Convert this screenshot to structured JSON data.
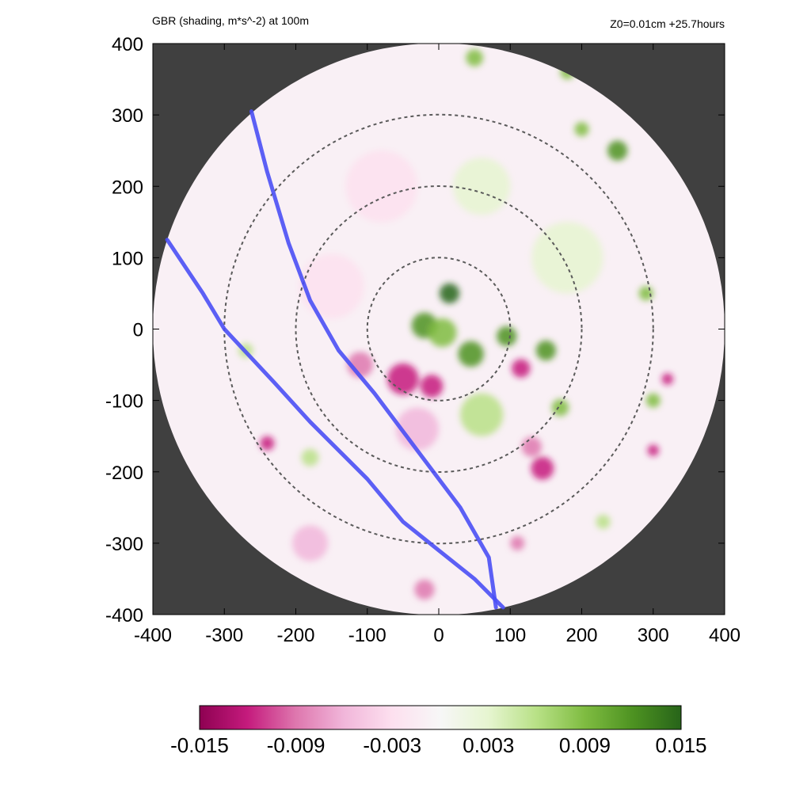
{
  "header": {
    "title": "GBR (shading, m*s^-2) at 100m",
    "run_info": "Z0=0.01cm  +25.7hours"
  },
  "chart_data": {
    "type": "heatmap",
    "title": "GBR (shading, m*s^-2) at 100m",
    "xlabel": "",
    "ylabel": "",
    "xlim": [
      -400,
      400
    ],
    "ylim": [
      -400,
      400
    ],
    "x_ticks": [
      -400,
      -300,
      -200,
      -100,
      0,
      100,
      200,
      300,
      400
    ],
    "y_ticks": [
      -400,
      -300,
      -200,
      -100,
      0,
      100,
      200,
      300,
      400
    ],
    "domain_radius": 400,
    "range_rings": [
      100,
      200,
      300
    ],
    "background_outside_domain": "#404040",
    "colorbar": {
      "range": [
        -0.015,
        0.015
      ],
      "tick_labels": [
        "-0.015",
        "-0.009",
        "-0.003",
        "0.003",
        "0.009",
        "0.015"
      ],
      "colors": [
        "#8e0152",
        "#c51b7d",
        "#de77ae",
        "#f1b6da",
        "#fde0ef",
        "#f7f7f7",
        "#e6f5d0",
        "#b8e186",
        "#7fbc41",
        "#4d9221",
        "#276419"
      ]
    },
    "tracks": [
      {
        "color": "#4a4ff5",
        "points": [
          [
            -380,
            125
          ],
          [
            -330,
            50
          ],
          [
            -300,
            0
          ],
          [
            -230,
            -75
          ],
          [
            -180,
            -130
          ],
          [
            -100,
            -210
          ],
          [
            -50,
            -270
          ],
          [
            0,
            -310
          ],
          [
            50,
            -350
          ],
          [
            90,
            -390
          ]
        ]
      },
      {
        "color": "#4a4ff5",
        "points": [
          [
            -262,
            305
          ],
          [
            -240,
            220
          ],
          [
            -210,
            120
          ],
          [
            -180,
            40
          ],
          [
            -140,
            -30
          ],
          [
            -90,
            -90
          ],
          [
            -30,
            -170
          ],
          [
            30,
            -250
          ],
          [
            70,
            -320
          ],
          [
            80,
            -390
          ]
        ]
      }
    ],
    "features": [
      {
        "x": 15,
        "y": 50,
        "r": 14,
        "value": 0.014
      },
      {
        "x": -20,
        "y": 5,
        "r": 18,
        "value": 0.012
      },
      {
        "x": 5,
        "y": -5,
        "r": 20,
        "value": 0.008
      },
      {
        "x": 45,
        "y": -35,
        "r": 18,
        "value": 0.011
      },
      {
        "x": 95,
        "y": -10,
        "r": 14,
        "value": 0.013
      },
      {
        "x": 115,
        "y": -55,
        "r": 13,
        "value": -0.012
      },
      {
        "x": 150,
        "y": -30,
        "r": 14,
        "value": 0.011
      },
      {
        "x": 145,
        "y": -195,
        "r": 16,
        "value": -0.013
      },
      {
        "x": 130,
        "y": -165,
        "r": 14,
        "value": -0.01
      },
      {
        "x": 170,
        "y": -110,
        "r": 12,
        "value": 0.01
      },
      {
        "x": 320,
        "y": -70,
        "r": 8,
        "value": -0.012
      },
      {
        "x": 300,
        "y": -170,
        "r": 8,
        "value": -0.013
      },
      {
        "x": 300,
        "y": -100,
        "r": 10,
        "value": 0.01
      },
      {
        "x": 250,
        "y": 250,
        "r": 14,
        "value": 0.011
      },
      {
        "x": 200,
        "y": 280,
        "r": 10,
        "value": 0.008
      },
      {
        "x": 290,
        "y": 50,
        "r": 10,
        "value": 0.009
      },
      {
        "x": -50,
        "y": -70,
        "r": 22,
        "value": -0.011
      },
      {
        "x": -110,
        "y": -50,
        "r": 18,
        "value": -0.009
      },
      {
        "x": -10,
        "y": -80,
        "r": 16,
        "value": -0.012
      },
      {
        "x": -30,
        "y": -140,
        "r": 30,
        "value": -0.006
      },
      {
        "x": -150,
        "y": 60,
        "r": 45,
        "value": -0.004
      },
      {
        "x": -240,
        "y": -160,
        "r": 10,
        "value": -0.011
      },
      {
        "x": -180,
        "y": -180,
        "r": 12,
        "value": 0.007
      },
      {
        "x": -270,
        "y": -30,
        "r": 10,
        "value": 0.007
      },
      {
        "x": -180,
        "y": -300,
        "r": 25,
        "value": -0.005
      },
      {
        "x": -20,
        "y": -365,
        "r": 14,
        "value": -0.008
      },
      {
        "x": 110,
        "y": -300,
        "r": 10,
        "value": -0.01
      },
      {
        "x": 230,
        "y": -270,
        "r": 10,
        "value": 0.007
      },
      {
        "x": 50,
        "y": 380,
        "r": 12,
        "value": 0.008
      },
      {
        "x": 180,
        "y": 360,
        "r": 10,
        "value": 0.009
      },
      {
        "x": 60,
        "y": 200,
        "r": 40,
        "value": 0.003
      },
      {
        "x": 180,
        "y": 100,
        "r": 50,
        "value": 0.003
      },
      {
        "x": -80,
        "y": 200,
        "r": 50,
        "value": -0.003
      },
      {
        "x": 60,
        "y": -120,
        "r": 30,
        "value": 0.006
      }
    ]
  }
}
